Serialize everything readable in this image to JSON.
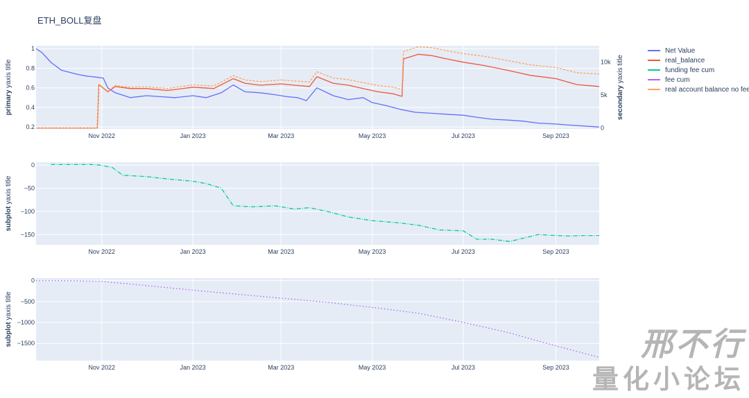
{
  "title": "ETH_BOLL复盘",
  "watermark": {
    "line1": "邢不行",
    "line2": "量化小论坛"
  },
  "colors": {
    "net_value": "#636efa",
    "real_balance": "#ef553b",
    "funding": "#00cc96",
    "fee": "#ab63fa",
    "no_fee": "#ffa15a",
    "grid": "#ffffff",
    "plot_bg": "#e5ecf6",
    "text": "#2a3f5f"
  },
  "legend": [
    {
      "name": "Net Value",
      "color": "#636efa"
    },
    {
      "name": "real_balance",
      "color": "#ef553b"
    },
    {
      "name": "funding fee cum",
      "color": "#00cc96"
    },
    {
      "name": "fee cum",
      "color": "#ab63fa"
    },
    {
      "name": "real account balance no fee",
      "color": "#ffa15a"
    }
  ],
  "x_ticks": [
    "Nov 2022",
    "Jan 2023",
    "Mar 2023",
    "May 2023",
    "Jul 2023",
    "Sep 2023"
  ],
  "chart_data": [
    {
      "type": "line",
      "ylabel_bold": "primary",
      "ylabel_rest": " yaxis title",
      "y2label_bold": "secondary",
      "y2label_rest": " yaxis title",
      "x_range": [
        "2022-09-18",
        "2023-09-30"
      ],
      "ylim": [
        0.18,
        1.03
      ],
      "y_ticks": [
        "0.2",
        "0.4",
        "0.6",
        "0.8",
        "1"
      ],
      "y2lim": [
        -150,
        12500
      ],
      "y2_ticks": [
        "0",
        "5k",
        "10k"
      ],
      "series": [
        {
          "key": "net_value",
          "axis": "y",
          "x": [
            "2022-09-18",
            "2022-09-22",
            "2022-09-28",
            "2022-10-05",
            "2022-10-15",
            "2022-10-22",
            "2022-10-28",
            "2022-11-02",
            "2022-11-05",
            "2022-11-10",
            "2022-11-20",
            "2022-12-01",
            "2022-12-10",
            "2022-12-20",
            "2023-01-01",
            "2023-01-10",
            "2023-01-20",
            "2023-01-28",
            "2023-02-05",
            "2023-02-15",
            "2023-02-25",
            "2023-03-05",
            "2023-03-12",
            "2023-03-18",
            "2023-03-25",
            "2023-04-05",
            "2023-04-15",
            "2023-04-25",
            "2023-05-01",
            "2023-05-10",
            "2023-05-20",
            "2023-05-30",
            "2023-06-10",
            "2023-06-20",
            "2023-07-01",
            "2023-07-10",
            "2023-07-20",
            "2023-08-01",
            "2023-08-10",
            "2023-08-20",
            "2023-09-01",
            "2023-09-10",
            "2023-09-20",
            "2023-09-30"
          ],
          "y": [
            1.0,
            0.96,
            0.86,
            0.78,
            0.74,
            0.72,
            0.71,
            0.7,
            0.6,
            0.55,
            0.5,
            0.52,
            0.51,
            0.5,
            0.52,
            0.5,
            0.55,
            0.63,
            0.56,
            0.55,
            0.53,
            0.51,
            0.5,
            0.47,
            0.6,
            0.52,
            0.48,
            0.5,
            0.45,
            0.42,
            0.38,
            0.35,
            0.34,
            0.33,
            0.32,
            0.3,
            0.28,
            0.27,
            0.26,
            0.24,
            0.23,
            0.22,
            0.21,
            0.2
          ]
        },
        {
          "key": "real_balance",
          "axis": "y2",
          "x": [
            "2022-09-18",
            "2022-10-29",
            "2022-10-30",
            "2022-11-05",
            "2022-11-10",
            "2022-11-20",
            "2022-12-01",
            "2022-12-15",
            "2023-01-01",
            "2023-01-15",
            "2023-01-28",
            "2023-02-05",
            "2023-02-15",
            "2023-03-01",
            "2023-03-10",
            "2023-03-20",
            "2023-03-25",
            "2023-04-05",
            "2023-04-15",
            "2023-04-25",
            "2023-05-05",
            "2023-05-15",
            "2023-05-21",
            "2023-05-22",
            "2023-06-01",
            "2023-06-10",
            "2023-06-20",
            "2023-07-01",
            "2023-07-15",
            "2023-08-01",
            "2023-08-15",
            "2023-09-01",
            "2023-09-15",
            "2023-09-30"
          ],
          "y": [
            0,
            0,
            6600,
            5500,
            6300,
            6000,
            6000,
            5700,
            6200,
            6000,
            7500,
            6800,
            6500,
            6700,
            6500,
            6300,
            7800,
            6800,
            6500,
            6000,
            5500,
            5200,
            4800,
            10500,
            11200,
            11000,
            10500,
            10000,
            9500,
            8700,
            8000,
            7500,
            6600,
            6300
          ]
        },
        {
          "key": "no_fee",
          "axis": "y2",
          "x": [
            "2022-09-18",
            "2022-10-29",
            "2022-10-30",
            "2022-11-05",
            "2022-11-10",
            "2022-11-20",
            "2022-12-01",
            "2022-12-15",
            "2023-01-01",
            "2023-01-15",
            "2023-01-28",
            "2023-02-05",
            "2023-02-15",
            "2023-03-01",
            "2023-03-10",
            "2023-03-20",
            "2023-03-25",
            "2023-04-05",
            "2023-04-15",
            "2023-04-25",
            "2023-05-05",
            "2023-05-15",
            "2023-05-21",
            "2023-05-22",
            "2023-06-01",
            "2023-06-10",
            "2023-06-20",
            "2023-07-01",
            "2023-07-15",
            "2023-08-01",
            "2023-08-15",
            "2023-09-01",
            "2023-09-15",
            "2023-09-30"
          ],
          "y": [
            0,
            0,
            6650,
            5600,
            6450,
            6200,
            6250,
            6000,
            6550,
            6400,
            7950,
            7300,
            7050,
            7300,
            7150,
            7000,
            8550,
            7600,
            7350,
            6900,
            6450,
            6200,
            5850,
            11600,
            12350,
            12200,
            11750,
            11300,
            10900,
            10200,
            9600,
            9200,
            8400,
            8200
          ]
        }
      ]
    },
    {
      "type": "line",
      "ylabel_bold": "subplot",
      "ylabel_rest": " yaxis title",
      "x_range": [
        "2022-09-18",
        "2023-09-30"
      ],
      "ylim": [
        -172,
        6
      ],
      "y_ticks": [
        "0",
        "−50",
        "−100",
        "−150"
      ],
      "series": [
        {
          "key": "funding",
          "axis": "y",
          "x": [
            "2022-09-28",
            "2022-10-25",
            "2022-10-30",
            "2022-11-08",
            "2022-11-15",
            "2022-12-01",
            "2022-12-15",
            "2023-01-01",
            "2023-01-10",
            "2023-01-20",
            "2023-01-28",
            "2023-02-10",
            "2023-02-25",
            "2023-03-10",
            "2023-03-20",
            "2023-04-01",
            "2023-04-15",
            "2023-05-01",
            "2023-05-20",
            "2023-06-01",
            "2023-06-15",
            "2023-07-01",
            "2023-07-10",
            "2023-07-20",
            "2023-08-01",
            "2023-08-10",
            "2023-08-20",
            "2023-09-01",
            "2023-09-10",
            "2023-09-20",
            "2023-09-30"
          ],
          "y": [
            1,
            1,
            0,
            -5,
            -22,
            -25,
            -30,
            -35,
            -40,
            -50,
            -88,
            -90,
            -88,
            -95,
            -92,
            -100,
            -112,
            -120,
            -125,
            -130,
            -140,
            -142,
            -160,
            -160,
            -165,
            -158,
            -150,
            -152,
            -153,
            -152,
            -152
          ]
        }
      ]
    },
    {
      "type": "line",
      "ylabel_bold": "subplot",
      "ylabel_rest": " yaxis title",
      "x_range": [
        "2022-09-18",
        "2023-09-30"
      ],
      "ylim": [
        -1910,
        60
      ],
      "y_ticks": [
        "0",
        "−500",
        "−1000",
        "−1500"
      ],
      "series": [
        {
          "key": "fee",
          "axis": "y",
          "x": [
            "2022-09-18",
            "2022-10-01",
            "2022-10-15",
            "2022-11-01",
            "2022-12-01",
            "2023-01-01",
            "2023-02-01",
            "2023-03-01",
            "2023-04-01",
            "2023-05-01",
            "2023-06-01",
            "2023-07-01",
            "2023-08-01",
            "2023-09-01",
            "2023-09-30"
          ],
          "y": [
            0,
            0,
            -5,
            -20,
            -120,
            -230,
            -330,
            -420,
            -520,
            -640,
            -780,
            -1000,
            -1250,
            -1560,
            -1830
          ]
        }
      ]
    }
  ]
}
